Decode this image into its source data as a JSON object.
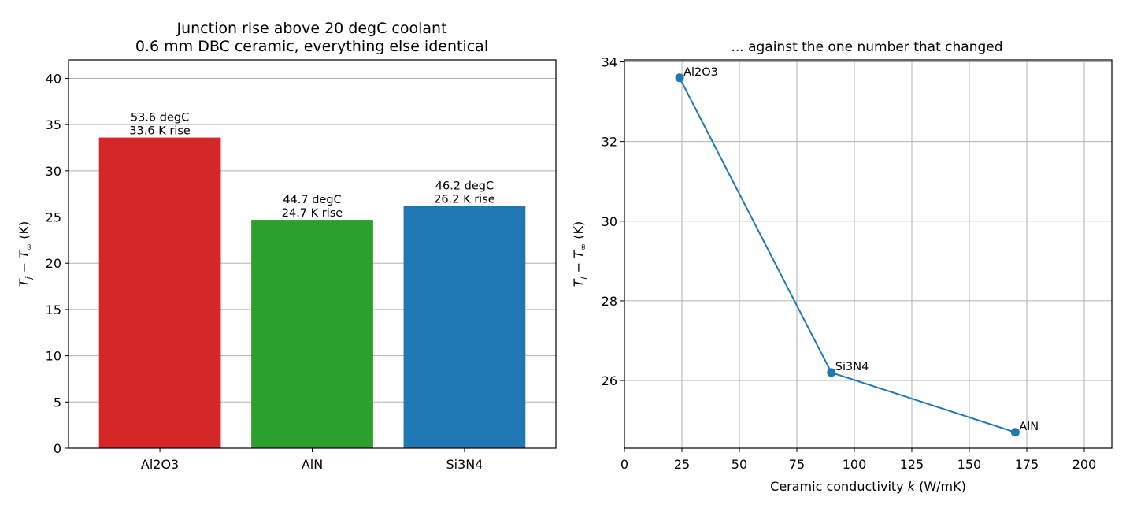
{
  "chart_data": [
    {
      "type": "bar",
      "title_line1": "Junction rise above 20 degC coolant",
      "title_line2": "0.6 mm DBC ceramic, everything else identical",
      "xlabel": "",
      "ylabel": "T_j − T_∞ (K)",
      "ylim": [
        0,
        42
      ],
      "yticks": [
        0,
        5,
        10,
        15,
        20,
        25,
        30,
        35,
        40
      ],
      "grid": "horizontal",
      "categories": [
        "Al2O3",
        "AlN",
        "Si3N4"
      ],
      "values": [
        33.6,
        24.7,
        26.2
      ],
      "colors": [
        "#d62728",
        "#2ca02c",
        "#1f77b4"
      ],
      "bar_labels": [
        [
          "53.6 degC",
          "33.6 K rise"
        ],
        [
          "44.7 degC",
          "24.7 K rise"
        ],
        [
          "46.2 degC",
          "26.2 K rise"
        ]
      ]
    },
    {
      "type": "line",
      "title": "... against the one number that changed",
      "xlabel": "Ceramic conductivity k (W/mK)",
      "ylabel": "T_j − T_∞ (K)",
      "xlim": [
        0,
        212
      ],
      "ylim": [
        24.3,
        34.05
      ],
      "xticks": [
        0,
        25,
        50,
        75,
        100,
        125,
        150,
        175,
        200
      ],
      "yticks": [
        26,
        28,
        30,
        32,
        34
      ],
      "grid": "both",
      "color": "#1f77b4",
      "points": [
        {
          "label": "Al2O3",
          "x": 24,
          "y": 33.6
        },
        {
          "label": "Si3N4",
          "x": 90,
          "y": 26.2
        },
        {
          "label": "AlN",
          "x": 170,
          "y": 24.7
        }
      ]
    }
  ]
}
